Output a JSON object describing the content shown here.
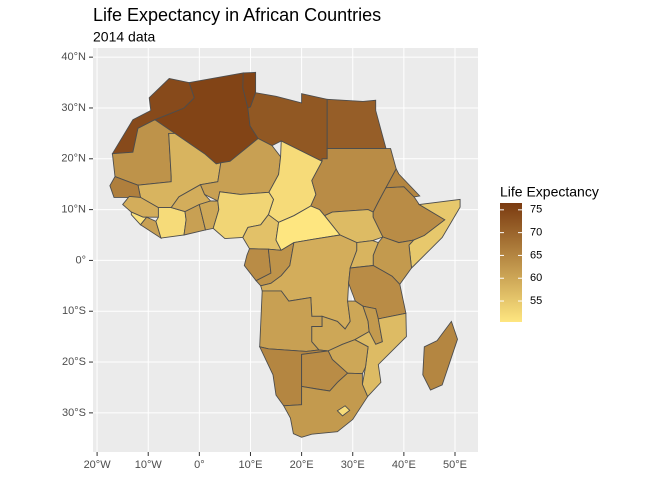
{
  "chart_data": {
    "type": "choropleth",
    "title": "Life Expectancy in African Countries",
    "subtitle": "2014 data",
    "xlim": [
      -20.8,
      54.5
    ],
    "ylim": [
      -37.7,
      41.8
    ],
    "xticks": [
      {
        "value": -20,
        "label": "20°W"
      },
      {
        "value": -10,
        "label": "10°W"
      },
      {
        "value": 0,
        "label": "0°"
      },
      {
        "value": 10,
        "label": "10°E"
      },
      {
        "value": 20,
        "label": "20°E"
      },
      {
        "value": 30,
        "label": "30°E"
      },
      {
        "value": 40,
        "label": "40°E"
      },
      {
        "value": 50,
        "label": "50°E"
      }
    ],
    "yticks": [
      {
        "value": 40,
        "label": "40°N"
      },
      {
        "value": 30,
        "label": "30°N"
      },
      {
        "value": 20,
        "label": "20°N"
      },
      {
        "value": 10,
        "label": "10°N"
      },
      {
        "value": 0,
        "label": "0°"
      },
      {
        "value": -10,
        "label": "10°S"
      },
      {
        "value": -20,
        "label": "20°S"
      },
      {
        "value": -30,
        "label": "30°S"
      }
    ],
    "grid": true,
    "legend_title": "Life Expectancy",
    "color_lim": [
      50.4,
      76.5
    ],
    "color_ticks": [
      55,
      60,
      65,
      70,
      75
    ],
    "low_color": "#fee680",
    "high_color": "#7a3a10",
    "values": [
      75,
      74,
      75,
      72,
      71,
      63,
      58,
      61,
      52,
      64,
      57,
      64,
      65,
      55,
      62,
      66,
      59,
      51,
      61,
      52,
      59,
      61,
      60,
      53,
      56,
      50,
      64,
      63,
      59,
      58,
      64,
      61,
      60,
      62,
      57,
      60,
      65,
      64,
      62,
      52,
      65
    ]
  }
}
